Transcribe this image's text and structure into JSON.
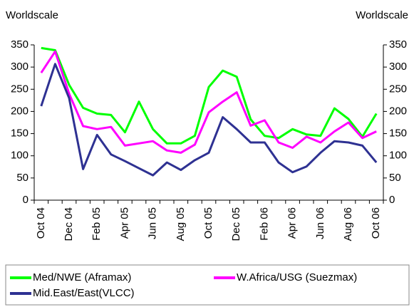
{
  "chart_data": {
    "type": "line",
    "y_label": "Worldscale",
    "y2_label": "Worldscale",
    "categories": [
      "Oct 04",
      null,
      "Dec 04",
      null,
      "Feb 05",
      null,
      "Apr 05",
      null,
      "Jun 05",
      null,
      "Aug 05",
      null,
      "Oct 05",
      null,
      "Dec 05",
      null,
      "Feb 06",
      null,
      "Apr 06",
      null,
      "Jun 06",
      null,
      "Aug 06",
      null,
      "Oct 06"
    ],
    "series": [
      {
        "name": "Med/NWE (Aframax)",
        "color": "#00ff00",
        "values": [
          343,
          338,
          260,
          208,
          195,
          192,
          153,
          222,
          160,
          128,
          128,
          145,
          255,
          292,
          278,
          182,
          145,
          140,
          160,
          148,
          145,
          207,
          183,
          143,
          195
        ]
      },
      {
        "name": "W.Africa/USG (Suezmax)",
        "color": "#ff00ff",
        "values": [
          287,
          335,
          240,
          167,
          160,
          165,
          123,
          128,
          133,
          112,
          107,
          125,
          198,
          222,
          243,
          168,
          180,
          130,
          118,
          143,
          130,
          155,
          175,
          140,
          155
        ]
      },
      {
        "name": "Mid.East/East(VLCC)",
        "color": "#2e3192",
        "values": [
          212,
          307,
          230,
          70,
          147,
          103,
          88,
          72,
          56,
          85,
          68,
          90,
          107,
          187,
          160,
          130,
          130,
          85,
          63,
          76,
          107,
          133,
          130,
          123,
          85
        ]
      }
    ],
    "ylim": [
      0,
      350
    ],
    "yticks": [
      0,
      50,
      100,
      150,
      200,
      250,
      300,
      350
    ],
    "y2lim": [
      0,
      350
    ],
    "y2ticks": [
      0,
      50,
      100,
      150,
      200,
      250,
      300,
      350
    ],
    "legend": "bottom"
  }
}
